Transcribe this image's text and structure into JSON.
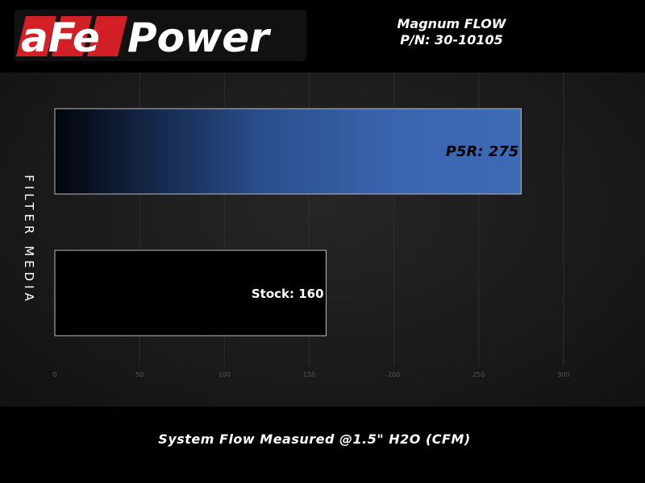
{
  "header": {
    "logo_text": "aFePower",
    "title_line1": "Magnum FLOW",
    "title_line2": "P/N: 30-10105"
  },
  "chart_data": {
    "type": "bar",
    "orientation": "horizontal",
    "categories": [
      "P5R",
      "Stock"
    ],
    "values": [
      275,
      160
    ],
    "data_labels": [
      "P5R: 275",
      "Stock: 160"
    ],
    "xlabel": "System Flow Measured @1.5\" H2O (CFM)",
    "ylabel": "FILTER MEDIA",
    "xlim": [
      0,
      300
    ],
    "xticks": [
      0,
      50,
      100,
      150,
      200,
      250,
      300
    ],
    "grid": true,
    "colors": {
      "P5R": "#3a66b0",
      "Stock": "#000000"
    }
  }
}
